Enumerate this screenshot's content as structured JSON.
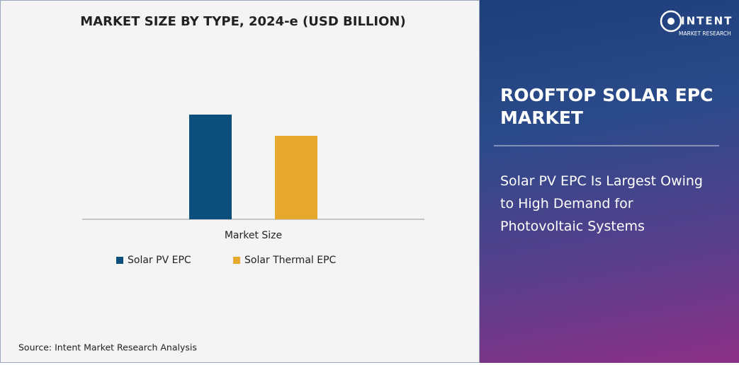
{
  "chart_data": {
    "type": "bar",
    "title": "MARKET SIZE BY TYPE, 2024-e (USD BILLION)",
    "categories": [
      "Market Size"
    ],
    "series": [
      {
        "name": "Solar PV EPC",
        "color": "#0d4f7c",
        "values": [
          148
        ]
      },
      {
        "name": "Solar Thermal EPC",
        "color": "#e6a92e",
        "values": [
          118
        ]
      }
    ],
    "source": "Source: Intent Market Research Analysis"
  },
  "panel": {
    "brand": "INTENT",
    "brand_sub": "MARKET RESEARCH",
    "heading": [
      "ROOFTOP SOLAR EPC",
      "MARKET"
    ],
    "subheading": [
      "Solar PV EPC Is Largest Owing",
      "to High Demand for",
      "Photovoltaic Systems"
    ]
  }
}
